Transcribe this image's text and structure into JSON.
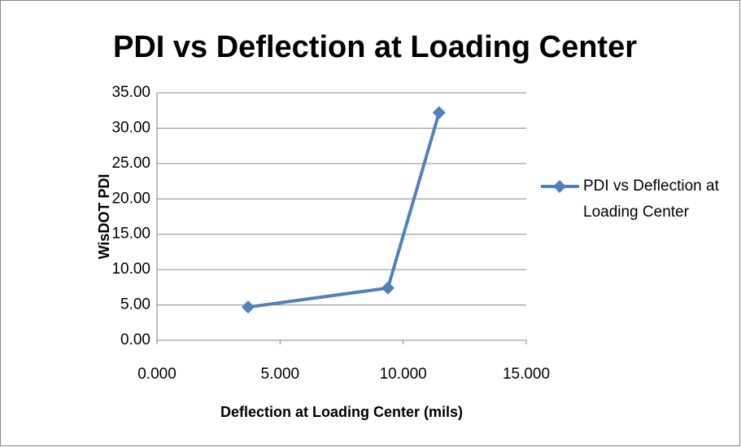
{
  "chart_data": {
    "type": "line",
    "title": "PDI vs Deflection at Loading Center",
    "x_label": "Deflection at Loading Center (mils)",
    "y_label": "WisDOT PDI",
    "series": [
      {
        "name": "PDI vs Deflection at Loading Center",
        "color": "#4f81bd",
        "x": [
          3.7,
          9.38,
          11.46
        ],
        "values": [
          4.7,
          7.4,
          32.2
        ]
      }
    ],
    "xlim": [
      0,
      15
    ],
    "xticks": [
      {
        "value": 0,
        "label": "0.000"
      },
      {
        "value": 5,
        "label": "5.000"
      },
      {
        "value": 10,
        "label": "10.000"
      },
      {
        "value": 15,
        "label": "15.000"
      }
    ],
    "ylim": [
      0,
      35
    ],
    "yticks": [
      {
        "value": 0,
        "label": "0.00"
      },
      {
        "value": 5,
        "label": "5.00"
      },
      {
        "value": 10,
        "label": "10.00"
      },
      {
        "value": 15,
        "label": "15.00"
      },
      {
        "value": 20,
        "label": "20.00"
      },
      {
        "value": 25,
        "label": "25.00"
      },
      {
        "value": 30,
        "label": "30.00"
      },
      {
        "value": 35,
        "label": "35.00"
      }
    ],
    "grid": true,
    "legend": "right"
  }
}
